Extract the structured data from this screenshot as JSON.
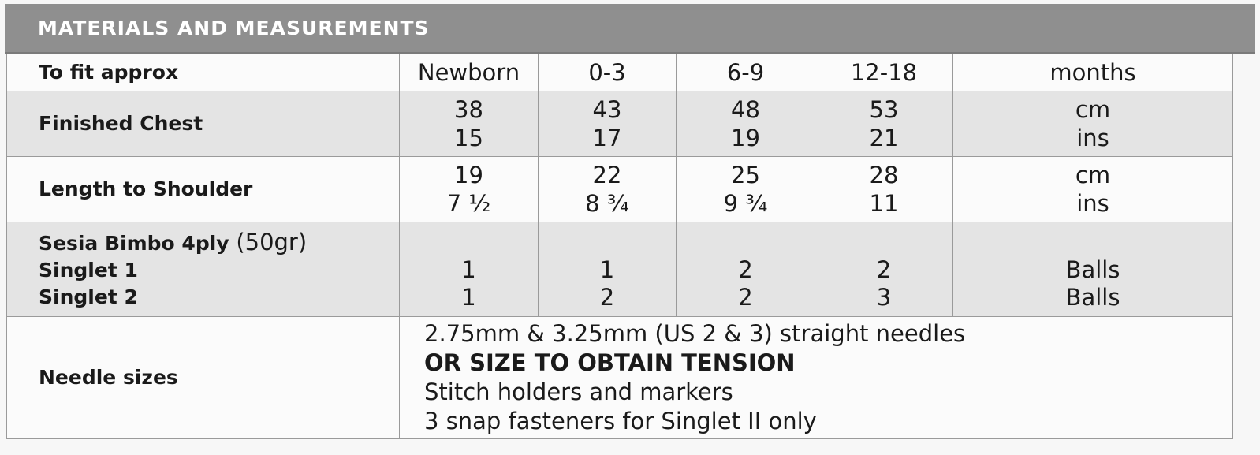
{
  "header": {
    "title": "MATERIALS AND MEASUREMENTS"
  },
  "table": {
    "fit": {
      "label": "To fit approx",
      "sizes": [
        "Newborn",
        "0-3",
        "6-9",
        "12-18"
      ],
      "unit": "months"
    },
    "chest": {
      "label": "Finished Chest",
      "cm": [
        "38",
        "43",
        "48",
        "53"
      ],
      "ins": [
        "15",
        "17",
        "19",
        "21"
      ],
      "unit_cm": "cm",
      "unit_ins": "ins"
    },
    "length": {
      "label": "Length to Shoulder",
      "cm": [
        "19",
        "22",
        "25",
        "28"
      ],
      "ins": [
        "7 ½",
        "8 ¾",
        "9 ¾",
        "11"
      ],
      "unit_cm": "cm",
      "unit_ins": "ins"
    },
    "yarn": {
      "label_bold": "Sesia Bimbo 4ply",
      "label_weight": "(50gr)",
      "singlet1_label": "Singlet 1",
      "singlet2_label": "Singlet 2",
      "singlet1": [
        "1",
        "1",
        "2",
        "2"
      ],
      "singlet2": [
        "1",
        "2",
        "2",
        "3"
      ],
      "unit": "Balls"
    },
    "needles": {
      "label": "Needle sizes",
      "lines": [
        "2.75mm & 3.25mm (US 2 & 3) straight needles",
        "OR SIZE TO OBTAIN TENSION",
        "Stitch holders and markers",
        "3 snap fasteners for Singlet II only"
      ]
    }
  }
}
